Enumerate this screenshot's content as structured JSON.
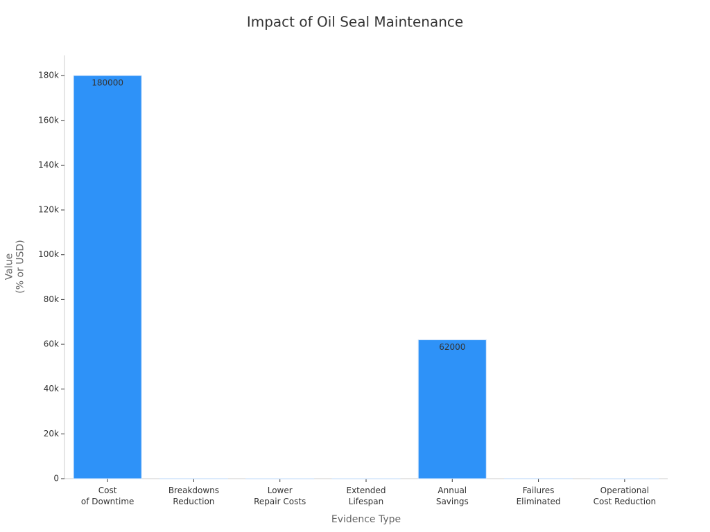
{
  "chart_data": {
    "type": "bar",
    "title": "Impact of Oil Seal Maintenance",
    "x_label": "Evidence Type",
    "y_label": "Value\n(% or USD)",
    "categories": [
      "Cost\nof Downtime",
      "Breakdowns\nReduction",
      "Lower\nRepair Costs",
      "Extended\nLifespan",
      "Annual\nSavings",
      "Failures\nEliminated",
      "Operational\nCost Reduction"
    ],
    "values": [
      180000,
      75,
      25,
      30,
      62000,
      100,
      25
    ],
    "color": "#2e92f8",
    "ylim": [
      0,
      189000
    ],
    "yticks": [
      0,
      {
        "value": 20000,
        "label": "20k"
      },
      {
        "value": 40000,
        "label": "40k"
      },
      {
        "value": 60000,
        "label": "60k"
      },
      {
        "value": 80000,
        "label": "80k"
      },
      {
        "value": 100000,
        "label": "100k"
      },
      {
        "value": 120000,
        "label": "120k"
      },
      {
        "value": 140000,
        "label": "140k"
      },
      {
        "value": 160000,
        "label": "160k"
      },
      {
        "value": 180000,
        "label": "180k"
      }
    ],
    "grid": false
  }
}
